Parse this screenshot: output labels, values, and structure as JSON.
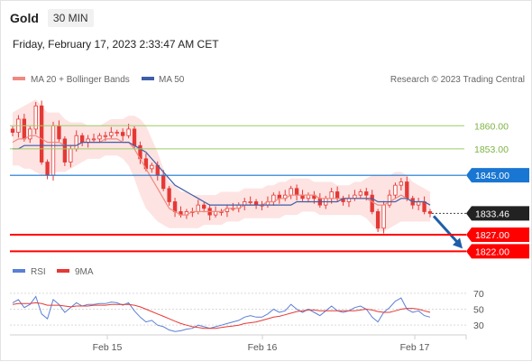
{
  "header": {
    "title": "Gold",
    "timeframe": "30 MIN",
    "datetime": "Friday, February 17, 2023 2:33:47 AM CET"
  },
  "legend": {
    "ma20_label": "MA 20 + Bollinger Bands",
    "ma50_label": "MA 50",
    "copyright": "Research © 2023 Trading Central",
    "rsi_label": "RSI",
    "rsi_ma_label": "9MA"
  },
  "colors": {
    "ma20": "#f08a80",
    "ma50": "#3f5ea8",
    "band_fill": "#fde3e2",
    "candle": "#e53935",
    "level_green": "#9ccc65",
    "level_blue": "#1976d2",
    "level_red": "#ff0000",
    "current": "#222222",
    "rsi": "#5b7fd6",
    "rsi_ma": "#e53935",
    "arrow": "#1f5fa8"
  },
  "chart_data": [
    {
      "type": "candlestick",
      "panel": "price",
      "x_ticks": [
        "Feb 15",
        "Feb 16",
        "Feb 17"
      ],
      "y_range": [
        1818,
        1868
      ],
      "levels": [
        {
          "value": 1860.0,
          "label": "1860.00",
          "style": "green-line"
        },
        {
          "value": 1853.0,
          "label": "1853.00",
          "style": "green-line"
        },
        {
          "value": 1845.0,
          "label": "1845.00",
          "style": "blue-resistance"
        },
        {
          "value": 1833.46,
          "label": "1833.46",
          "style": "current-price"
        },
        {
          "value": 1827.0,
          "label": "1827.00",
          "style": "red-support"
        },
        {
          "value": 1822.0,
          "label": "1822.00",
          "style": "red-support"
        }
      ],
      "close_path": [
        1858,
        1862,
        1856,
        1859,
        1866,
        1849,
        1845,
        1860,
        1856,
        1849,
        1853,
        1857,
        1855,
        1856,
        1856,
        1857,
        1857,
        1858,
        1858,
        1857,
        1859,
        1854,
        1850,
        1847,
        1848,
        1845,
        1841,
        1837,
        1834,
        1833,
        1834,
        1834,
        1836,
        1835,
        1833,
        1834,
        1834,
        1835,
        1835,
        1836,
        1837,
        1837,
        1836,
        1836,
        1837,
        1839,
        1838,
        1839,
        1841,
        1839,
        1838,
        1839,
        1838,
        1836,
        1838,
        1840,
        1838,
        1837,
        1838,
        1839,
        1840,
        1839,
        1834,
        1829,
        1836,
        1839,
        1842,
        1843,
        1838,
        1836,
        1837,
        1834,
        1833.46
      ],
      "ma20": [
        1855,
        1856,
        1856,
        1857,
        1857,
        1856,
        1855,
        1855,
        1855,
        1854,
        1854,
        1854,
        1855,
        1855,
        1855,
        1855,
        1856,
        1856,
        1856,
        1855,
        1855,
        1853,
        1850,
        1847,
        1844,
        1841,
        1838,
        1835,
        1834,
        1833,
        1833,
        1834,
        1834,
        1834,
        1834,
        1834,
        1834,
        1835,
        1835,
        1835,
        1836,
        1836,
        1836,
        1836,
        1837,
        1837,
        1838,
        1838,
        1839,
        1839,
        1839,
        1839,
        1839,
        1838,
        1838,
        1838,
        1838,
        1838,
        1838,
        1838,
        1838,
        1838,
        1837,
        1836,
        1836,
        1837,
        1838,
        1839,
        1838,
        1837,
        1837,
        1837,
        1836
      ],
      "upper_band": [
        1864,
        1865,
        1866,
        1867,
        1868,
        1866,
        1864,
        1864,
        1864,
        1862,
        1861,
        1861,
        1861,
        1860,
        1860,
        1860,
        1861,
        1862,
        1862,
        1862,
        1863,
        1863,
        1862,
        1860,
        1856,
        1852,
        1847,
        1843,
        1842,
        1840,
        1840,
        1839,
        1839,
        1839,
        1839,
        1839,
        1840,
        1840,
        1840,
        1840,
        1841,
        1841,
        1841,
        1841,
        1842,
        1842,
        1843,
        1843,
        1844,
        1844,
        1844,
        1844,
        1843,
        1843,
        1843,
        1843,
        1842,
        1842,
        1842,
        1843,
        1843,
        1844,
        1845,
        1845,
        1845,
        1845,
        1846,
        1846,
        1845,
        1843,
        1842,
        1841,
        1840
      ],
      "lower_band": [
        1848,
        1848,
        1847,
        1847,
        1846,
        1845,
        1845,
        1846,
        1846,
        1846,
        1847,
        1848,
        1849,
        1850,
        1850,
        1850,
        1851,
        1851,
        1851,
        1850,
        1848,
        1844,
        1839,
        1835,
        1833,
        1831,
        1830,
        1829,
        1829,
        1829,
        1829,
        1829,
        1829,
        1830,
        1830,
        1830,
        1830,
        1831,
        1831,
        1831,
        1832,
        1832,
        1832,
        1832,
        1832,
        1832,
        1832,
        1833,
        1833,
        1833,
        1834,
        1834,
        1834,
        1833,
        1833,
        1833,
        1833,
        1833,
        1833,
        1833,
        1833,
        1832,
        1830,
        1828,
        1828,
        1829,
        1830,
        1831,
        1831,
        1831,
        1831,
        1831,
        1831
      ],
      "ma50": [
        1853,
        1853,
        1854,
        1854,
        1854,
        1854,
        1854,
        1854,
        1854,
        1854,
        1854,
        1854,
        1855,
        1855,
        1855,
        1855,
        1855,
        1855,
        1855,
        1855,
        1855,
        1854,
        1853,
        1852,
        1850,
        1848,
        1846,
        1844,
        1842,
        1841,
        1840,
        1839,
        1838,
        1837,
        1836,
        1836,
        1836,
        1836,
        1836,
        1836,
        1836,
        1836,
        1836,
        1836,
        1836,
        1836,
        1836,
        1836,
        1836,
        1837,
        1837,
        1837,
        1837,
        1837,
        1837,
        1837,
        1837,
        1838,
        1838,
        1838,
        1838,
        1838,
        1838,
        1837,
        1837,
        1837,
        1837,
        1838,
        1838,
        1837,
        1837,
        1837,
        1836
      ]
    },
    {
      "type": "line",
      "panel": "rsi",
      "y_range": [
        20,
        80
      ],
      "y_ticks": [
        70,
        50,
        30
      ],
      "series": [
        {
          "name": "RSI",
          "values": [
            58,
            62,
            52,
            56,
            66,
            44,
            38,
            62,
            56,
            46,
            52,
            58,
            54,
            56,
            56,
            57,
            57,
            59,
            58,
            55,
            58,
            48,
            40,
            34,
            36,
            30,
            28,
            24,
            22,
            23,
            25,
            26,
            30,
            28,
            26,
            28,
            30,
            32,
            34,
            36,
            40,
            42,
            40,
            40,
            44,
            50,
            46,
            48,
            56,
            50,
            46,
            50,
            46,
            42,
            48,
            54,
            48,
            46,
            48,
            52,
            54,
            50,
            40,
            34,
            46,
            52,
            60,
            64,
            50,
            46,
            48,
            42,
            40
          ]
        },
        {
          "name": "9MA",
          "values": [
            56,
            57,
            57,
            57,
            58,
            57,
            55,
            55,
            55,
            54,
            53,
            54,
            54,
            54,
            55,
            55,
            55,
            56,
            56,
            56,
            56,
            55,
            53,
            50,
            47,
            44,
            41,
            38,
            35,
            32,
            30,
            28,
            27,
            26,
            26,
            26,
            27,
            28,
            29,
            30,
            32,
            33,
            34,
            36,
            38,
            40,
            41,
            43,
            45,
            47,
            48,
            49,
            49,
            48,
            48,
            48,
            48,
            48,
            48,
            48,
            49,
            50,
            49,
            47,
            46,
            46,
            48,
            50,
            51,
            51,
            50,
            48,
            46
          ]
        }
      ]
    }
  ]
}
